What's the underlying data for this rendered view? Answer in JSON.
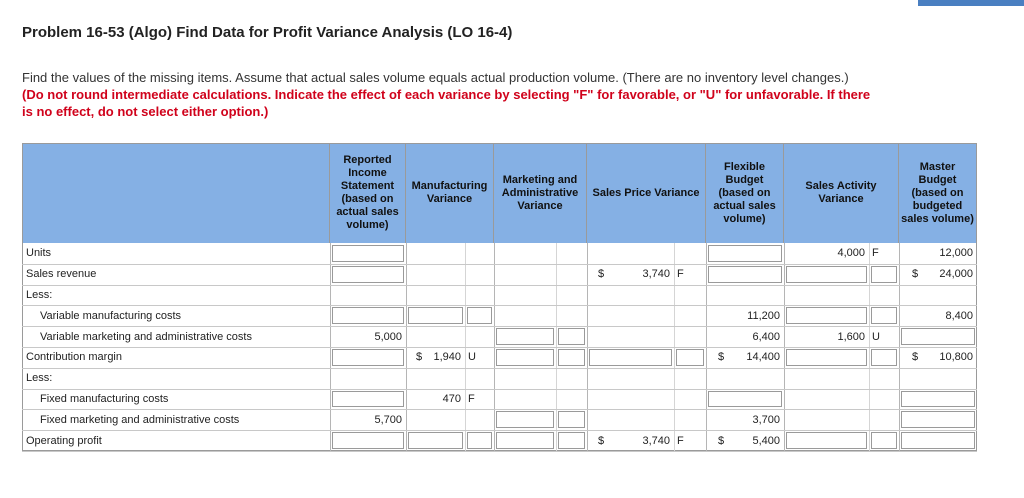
{
  "header": {
    "title": "Problem 16-53 (Algo) Find Data for Profit Variance Analysis (LO 16-4)",
    "instructions": "Find the values of the missing items. Assume that actual sales volume equals actual production volume. (There are no inventory level changes.)",
    "instructions_emphasis": "(Do not round intermediate calculations. Indicate the effect of each variance by selecting \"F\" for favorable, or \"U\" for unfavorable. If there is no effect, do not select either option.)"
  },
  "table": {
    "columns": {
      "rep": "Reported Income Statement (based on actual sales volume)",
      "mfg": "Manufacturing Variance",
      "mkt": "Marketing and Administrative Variance",
      "price": "Sales Price Variance",
      "flex": "Flexible Budget (based on actual sales volume)",
      "act": "Sales Activity Variance",
      "master": "Master Budget (based on budgeted sales volume)"
    },
    "rows": [
      {
        "label": "Units",
        "cells": {
          "act": "4,000",
          "act_fu": "F",
          "master": "12,000"
        }
      },
      {
        "label": "Sales revenue",
        "cells": {
          "price_cur": "$",
          "price": "3,740",
          "price_fu": "F",
          "master_cur": "$",
          "master": "24,000"
        }
      },
      {
        "label": "Less:",
        "cells": {}
      },
      {
        "label": "Variable manufacturing costs",
        "cells": {
          "flex": "11,200",
          "master": "8,400"
        }
      },
      {
        "label": "Variable marketing and administrative costs",
        "cells": {
          "rep": "5,000",
          "flex": "6,400",
          "act": "1,600",
          "act_fu": "U"
        }
      },
      {
        "label": "Contribution margin",
        "cells": {
          "mfg_cur": "$",
          "mfg": "1,940",
          "mfg_fu": "U",
          "flex_cur": "$",
          "flex": "14,400",
          "master_cur": "$",
          "master": "10,800"
        }
      },
      {
        "label": "Less:",
        "cells": {}
      },
      {
        "label": "Fixed manufacturing costs",
        "cells": {
          "mfg": "470",
          "mfg_fu": "F"
        }
      },
      {
        "label": "Fixed marketing and administrative costs",
        "cells": {
          "rep": "5,700",
          "flex": "3,700"
        }
      },
      {
        "label": "Operating profit",
        "cells": {
          "price_cur": "$",
          "price": "3,740",
          "price_fu": "F",
          "flex_cur": "$",
          "flex": "5,400"
        }
      }
    ]
  }
}
